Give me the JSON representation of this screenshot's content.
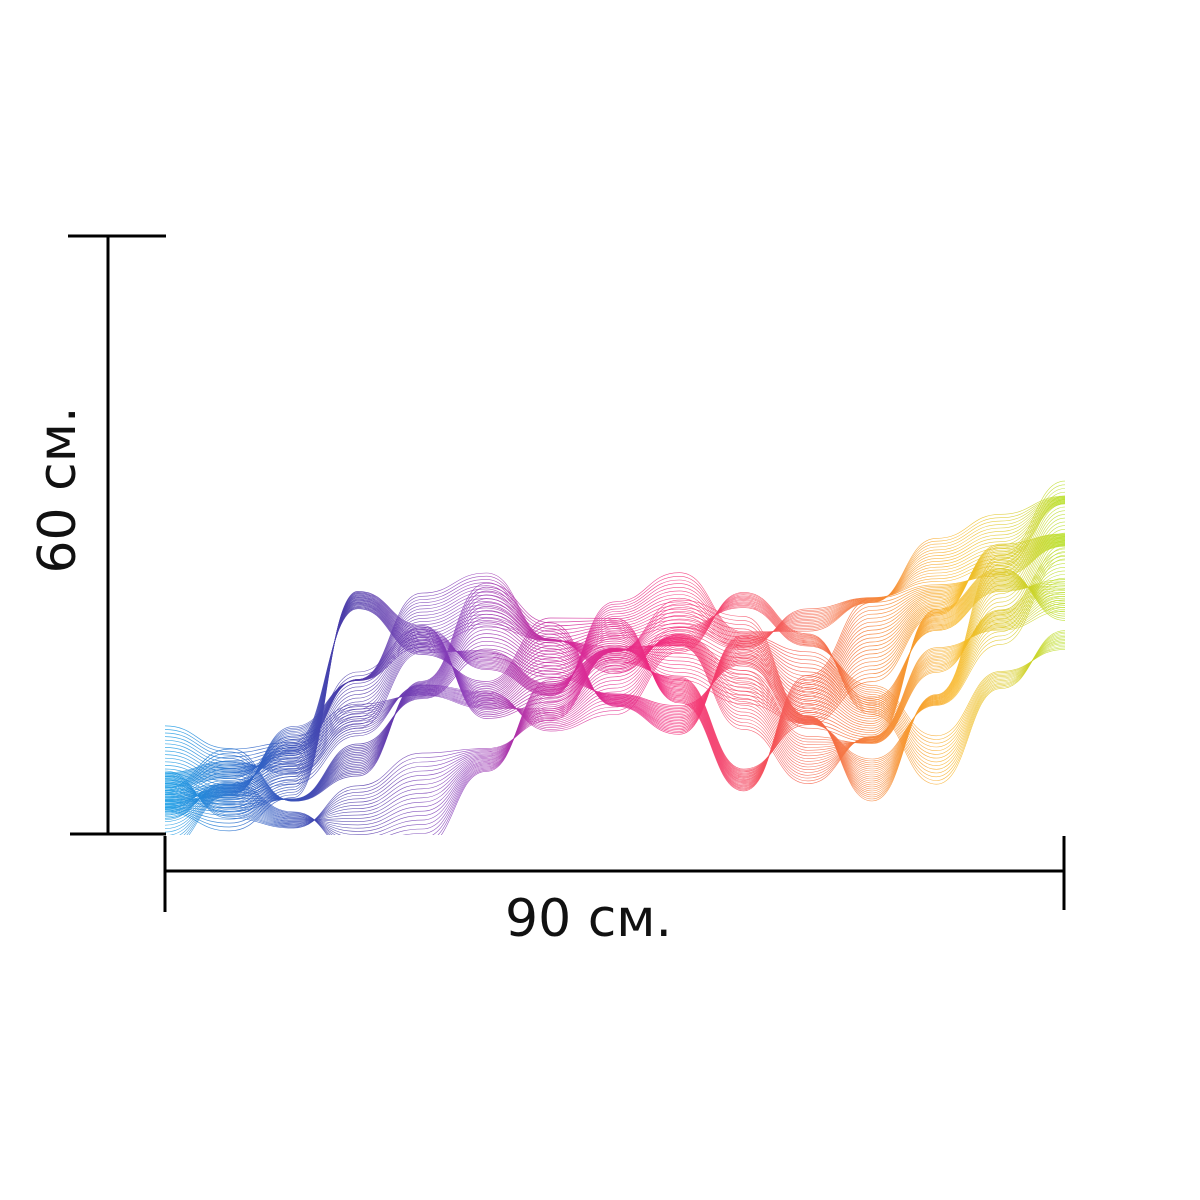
{
  "dimensions": {
    "width_label": "90 см.",
    "height_label": "60 см."
  },
  "artwork": {
    "description_colors": [
      "#1ea0e6",
      "#3a46b4",
      "#6a3ab0",
      "#a53ab8",
      "#e0288c",
      "#f23c78",
      "#f5644a",
      "#f6902e",
      "#f8c21e",
      "#c8e02a"
    ],
    "line_color": "#000000",
    "background": "#ffffff"
  }
}
